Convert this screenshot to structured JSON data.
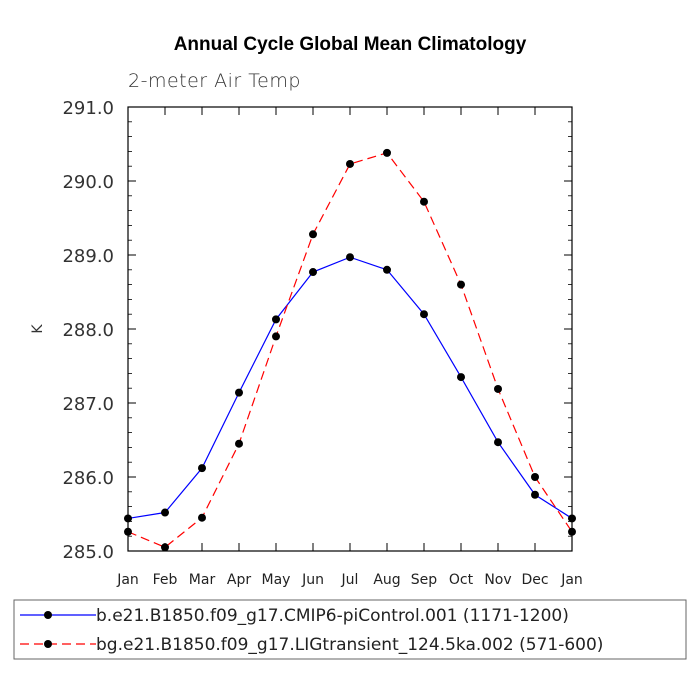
{
  "chart_data": {
    "type": "line",
    "title": "Annual Cycle Global Mean Climatology",
    "subtitle": "2-meter Air Temp",
    "ylabel": "K",
    "xlabel": "",
    "categories": [
      "Jan",
      "Feb",
      "Mar",
      "Apr",
      "May",
      "Jun",
      "Jul",
      "Aug",
      "Sep",
      "Oct",
      "Nov",
      "Dec",
      "Jan"
    ],
    "ylim": [
      285.0,
      291.0
    ],
    "yticks": [
      285.0,
      286.0,
      287.0,
      288.0,
      289.0,
      290.0,
      291.0
    ],
    "ytick_labels": [
      "285.0",
      "286.0",
      "287.0",
      "288.0",
      "289.0",
      "290.0",
      "291.0"
    ],
    "series": [
      {
        "name": "b.e21.B1850.f09_g17.CMIP6-piControl.001 (1171-1200)",
        "color": "#0000ff",
        "dash": "solid",
        "values": [
          285.44,
          285.52,
          286.12,
          287.14,
          288.13,
          288.77,
          288.97,
          288.8,
          288.2,
          287.35,
          286.47,
          285.76,
          285.44
        ]
      },
      {
        "name": "bg.e21.B1850.f09_g17.LIGtransient_124.5ka.002 (571-600)",
        "color": "#ff0000",
        "dash": "dashed",
        "values": [
          285.26,
          285.05,
          285.45,
          286.45,
          287.9,
          289.28,
          290.23,
          290.38,
          289.72,
          288.6,
          287.19,
          286.0,
          285.26
        ]
      }
    ],
    "grid": false,
    "legend_position": "bottom"
  }
}
